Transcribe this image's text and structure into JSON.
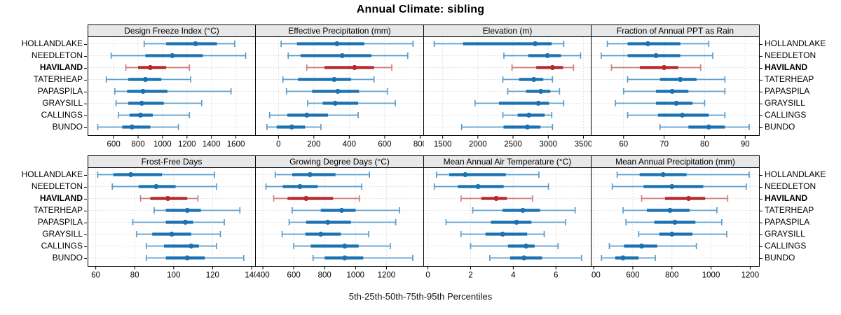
{
  "title": "Annual Climate: sibling",
  "caption": "5th-25th-50th-75th-95th Percentiles",
  "sites": [
    "HOLLANDLAKE",
    "NEEDLETON",
    "HAVILAND",
    "TATERHEAP",
    "PAPASPILA",
    "GRAYSILL",
    "CALLINGS",
    "BUNDO"
  ],
  "highlight_site": "HAVILAND",
  "colors": {
    "series": "#1b72b2",
    "series_light": "#5b9dcb",
    "highlight": "#b5282c",
    "highlight_light": "#cf7d7d",
    "strip_bg": "#e8e8e8",
    "panel_border": "#000000",
    "grid": "#c4c4c4",
    "text": "#000000"
  },
  "chart_data": {
    "type": "scatter",
    "style": "trellis dotplot: dot = median, thick bar = 25th-75th, thin whisker with caps = 5th-95th percentiles",
    "statistics": [
      "p5",
      "p25",
      "p50",
      "p75",
      "p95"
    ],
    "categories": [
      "HOLLANDLAKE",
      "NEEDLETON",
      "HAVILAND",
      "TATERHEAP",
      "PAPASPILA",
      "GRAYSILL",
      "CALLINGS",
      "BUNDO"
    ],
    "legend_position": "none",
    "grid": "dotted",
    "panels": [
      {
        "title": "Design Freeze Index (°C)",
        "xticks": [
          600,
          800,
          1000,
          1200,
          1400,
          1600
        ],
        "xlim": [
          390,
          1760
        ],
        "values": [
          [
            850,
            1030,
            1270,
            1445,
            1590
          ],
          [
            580,
            860,
            1080,
            1330,
            1680
          ],
          [
            700,
            800,
            900,
            1030,
            1220
          ],
          [
            540,
            720,
            860,
            990,
            1230
          ],
          [
            610,
            710,
            840,
            1040,
            1560
          ],
          [
            620,
            720,
            830,
            1010,
            1320
          ],
          [
            640,
            730,
            820,
            920,
            1220
          ],
          [
            470,
            670,
            750,
            900,
            1130
          ]
        ]
      },
      {
        "title": "Effective Precipitation (mm)",
        "xticks": [
          0,
          200,
          400,
          600,
          800
        ],
        "xlim": [
          -130,
          820
        ],
        "values": [
          [
            15,
            105,
            330,
            485,
            760
          ],
          [
            55,
            125,
            360,
            525,
            730
          ],
          [
            160,
            260,
            430,
            540,
            640
          ],
          [
            25,
            110,
            315,
            410,
            540
          ],
          [
            45,
            190,
            335,
            455,
            615
          ],
          [
            165,
            250,
            320,
            450,
            660
          ],
          [
            -50,
            50,
            160,
            280,
            450
          ],
          [
            -65,
            -10,
            75,
            150,
            240
          ]
        ]
      },
      {
        "title": "Elevation (m)",
        "xticks": [
          1500,
          2000,
          2500,
          3000,
          3500
        ],
        "xlim": [
          1230,
          3610
        ],
        "values": [
          [
            1380,
            1790,
            2815,
            3050,
            3220
          ],
          [
            2370,
            2715,
            2990,
            3180,
            3460
          ],
          [
            2485,
            2830,
            3060,
            3210,
            3360
          ],
          [
            2355,
            2585,
            2795,
            2930,
            3060
          ],
          [
            2425,
            2685,
            2895,
            3030,
            3160
          ],
          [
            1960,
            2300,
            2860,
            3010,
            3220
          ],
          [
            2355,
            2565,
            2725,
            2950,
            3050
          ],
          [
            1770,
            2365,
            2705,
            2890,
            3060
          ]
        ]
      },
      {
        "title": "Fraction of Annual PPT as Rain",
        "xticks": [
          60,
          70,
          80,
          90
        ],
        "xlim": [
          52,
          93.5
        ],
        "values": [
          [
            56,
            61,
            66,
            74,
            81
          ],
          [
            54.5,
            61,
            68,
            74,
            82
          ],
          [
            57,
            64,
            70,
            73.5,
            79
          ],
          [
            61,
            69,
            74,
            78,
            85
          ],
          [
            60,
            68,
            72,
            76,
            85
          ],
          [
            58,
            68,
            73,
            77,
            80
          ],
          [
            61,
            68.5,
            74.5,
            81,
            85
          ],
          [
            69,
            76,
            81,
            85,
            91
          ]
        ]
      },
      {
        "title": "Frost-Free Days",
        "xticks": [
          60,
          80,
          100,
          120,
          140
        ],
        "xlim": [
          56,
          142
        ],
        "values": [
          [
            61,
            69,
            78,
            94,
            121
          ],
          [
            68.5,
            82,
            91,
            101,
            122
          ],
          [
            83,
            88,
            97,
            107,
            112.5
          ],
          [
            90,
            96,
            107,
            114,
            134
          ],
          [
            79,
            96,
            106,
            110,
            126
          ],
          [
            81,
            89,
            99,
            109,
            124
          ],
          [
            86,
            95,
            109,
            113,
            122
          ],
          [
            86,
            96,
            107,
            116,
            136
          ]
        ]
      },
      {
        "title": "Growing Degree Days (°C)",
        "xticks": [
          400,
          600,
          800,
          1000,
          1200
        ],
        "xlim": [
          352,
          1441
        ],
        "values": [
          [
            480,
            590,
            705,
            870,
            1090
          ],
          [
            420,
            530,
            640,
            755,
            1040
          ],
          [
            470,
            560,
            680,
            855,
            1025
          ],
          [
            590,
            775,
            910,
            1000,
            1285
          ],
          [
            570,
            680,
            820,
            970,
            1260
          ],
          [
            525,
            675,
            775,
            905,
            1085
          ],
          [
            600,
            710,
            930,
            1020,
            1225
          ],
          [
            725,
            800,
            930,
            1050,
            1370
          ]
        ]
      },
      {
        "title": "Mean Annual Air Temperature (°C)",
        "xticks": [
          0,
          2,
          4,
          6
        ],
        "xlim": [
          -0.2,
          7.65
        ],
        "values": [
          [
            0.4,
            1.0,
            1.75,
            3.65,
            5.2
          ],
          [
            0.3,
            1.4,
            2.35,
            3.55,
            5.65
          ],
          [
            1.55,
            2.5,
            3.2,
            3.7,
            4.9
          ],
          [
            2.1,
            3.5,
            4.45,
            5.25,
            6.9
          ],
          [
            0.85,
            2.95,
            4.15,
            4.85,
            6.45
          ],
          [
            1.55,
            2.7,
            3.5,
            4.65,
            5.45
          ],
          [
            2.0,
            3.75,
            4.6,
            5.0,
            6.1
          ],
          [
            2.9,
            3.85,
            4.5,
            5.35,
            7.2
          ]
        ]
      },
      {
        "title": "Mean Annual Precipitation (mm)",
        "xticks": [
          400,
          600,
          800,
          1000,
          1200
        ],
        "xlim": [
          387,
          1247
        ],
        "values": [
          [
            520,
            635,
            755,
            875,
            1195
          ],
          [
            495,
            655,
            800,
            960,
            1180
          ],
          [
            645,
            765,
            885,
            970,
            1085
          ],
          [
            550,
            672,
            790,
            890,
            1030
          ],
          [
            565,
            710,
            815,
            920,
            1055
          ],
          [
            630,
            735,
            800,
            905,
            1080
          ],
          [
            480,
            555,
            645,
            725,
            925
          ],
          [
            440,
            510,
            550,
            630,
            715
          ]
        ]
      }
    ]
  }
}
